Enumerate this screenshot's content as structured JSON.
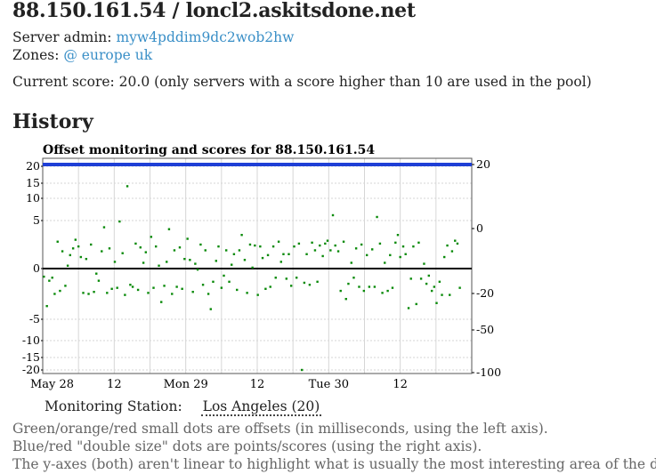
{
  "header": {
    "title": "88.150.161.54 / loncl2.askitsdone.net",
    "admin_label": "Server admin:",
    "admin_value": "myw4pddim9dc2wob2hw",
    "zones_label": "Zones:",
    "zones_value": "@ europe uk",
    "score_text": "Current score: 20.0 (only servers with a score higher than 10 are used in the pool)"
  },
  "history": {
    "heading": "History",
    "station_label": "Monitoring Station:",
    "station_value": "Los Angeles (20)"
  },
  "legend": {
    "line1": "Green/orange/red small dots are offsets (in milliseconds, using the left axis).",
    "line2": "Blue/red \"double size\" dots are points/scores (using the right axis).",
    "line3": "The y-axes (both) aren't linear to highlight what is usually the most interesting area of the data."
  },
  "colors": {
    "offset_dot": "#0a8a0a",
    "score_line": "#1f3fd6",
    "link": "#3a8fc7"
  },
  "chart_data": {
    "type": "scatter",
    "title": "Offset monitoring and scores for 88.150.161.54",
    "x_tick_labels": [
      "May 28",
      "12",
      "Mon 29",
      "12",
      "Tue 30",
      "12"
    ],
    "left_axis_ticks": [
      "20",
      "15",
      "10",
      "5",
      "0",
      "-5",
      "-10",
      "-15",
      "-20"
    ],
    "right_axis_ticks": [
      "20",
      "0",
      "-20",
      "-50",
      "-100"
    ],
    "xlim_hours": [
      0,
      72
    ],
    "series": [
      {
        "axis": "left",
        "points": [
          [
            0.2,
            -0.8
          ],
          [
            0.7,
            -3.7
          ],
          [
            1.1,
            -1.2
          ],
          [
            1.6,
            -0.9
          ],
          [
            2.0,
            -2.5
          ],
          [
            2.5,
            2.8
          ],
          [
            2.9,
            -2.2
          ],
          [
            3.3,
            1.8
          ],
          [
            3.8,
            -1.7
          ],
          [
            4.2,
            0.3
          ],
          [
            4.6,
            1.4
          ],
          [
            5.1,
            2.1
          ],
          [
            5.5,
            3.0
          ],
          [
            6.0,
            2.3
          ],
          [
            6.4,
            1.2
          ],
          [
            6.8,
            -2.4
          ],
          [
            7.3,
            1.0
          ],
          [
            7.7,
            -2.5
          ],
          [
            8.1,
            2.5
          ],
          [
            8.6,
            -2.3
          ],
          [
            9.0,
            -0.5
          ],
          [
            9.4,
            -1.2
          ],
          [
            9.9,
            1.8
          ],
          [
            10.3,
            4.3
          ],
          [
            10.8,
            -2.4
          ],
          [
            11.2,
            2.1
          ],
          [
            11.6,
            -2.0
          ],
          [
            12.1,
            0.7
          ],
          [
            12.5,
            -1.9
          ],
          [
            12.9,
            4.9
          ],
          [
            13.4,
            1.6
          ],
          [
            13.8,
            -2.6
          ],
          [
            14.2,
            14.0
          ],
          [
            14.7,
            -1.6
          ],
          [
            15.1,
            -1.8
          ],
          [
            15.6,
            2.6
          ],
          [
            16.0,
            -2.1
          ],
          [
            16.4,
            2.2
          ],
          [
            16.9,
            0.6
          ],
          [
            17.3,
            1.7
          ],
          [
            17.7,
            -2.4
          ],
          [
            18.2,
            3.3
          ],
          [
            18.6,
            -1.9
          ],
          [
            19.0,
            2.3
          ],
          [
            19.5,
            0.3
          ],
          [
            19.9,
            -3.3
          ],
          [
            20.4,
            -1.7
          ],
          [
            20.8,
            0.7
          ],
          [
            21.2,
            4.1
          ],
          [
            21.7,
            -2.5
          ],
          [
            22.1,
            1.9
          ],
          [
            22.5,
            -1.8
          ],
          [
            23.0,
            2.2
          ],
          [
            23.4,
            -2.0
          ],
          [
            23.8,
            1.0
          ],
          [
            24.3,
            3.1
          ],
          [
            24.7,
            0.9
          ],
          [
            25.2,
            -2.3
          ],
          [
            25.6,
            0.5
          ],
          [
            26.0,
            -0.1
          ],
          [
            26.5,
            2.5
          ],
          [
            26.9,
            -1.6
          ],
          [
            27.3,
            1.9
          ],
          [
            27.8,
            -2.5
          ],
          [
            28.2,
            -4.0
          ],
          [
            28.6,
            -1.3
          ],
          [
            29.1,
            0.8
          ],
          [
            29.5,
            2.3
          ],
          [
            30.0,
            -1.9
          ],
          [
            30.4,
            -0.7
          ],
          [
            30.8,
            1.9
          ],
          [
            31.3,
            -1.3
          ],
          [
            31.7,
            0.4
          ],
          [
            32.1,
            1.5
          ],
          [
            32.6,
            -2.1
          ],
          [
            33.0,
            1.9
          ],
          [
            33.4,
            3.5
          ],
          [
            33.9,
            0.9
          ],
          [
            34.3,
            -2.4
          ],
          [
            34.8,
            2.5
          ],
          [
            35.2,
            0.1
          ],
          [
            35.6,
            2.4
          ],
          [
            36.1,
            -2.6
          ],
          [
            36.5,
            2.3
          ],
          [
            36.9,
            1.1
          ],
          [
            37.4,
            -2.0
          ],
          [
            37.8,
            1.4
          ],
          [
            38.2,
            -1.8
          ],
          [
            38.7,
            2.3
          ],
          [
            39.1,
            -0.9
          ],
          [
            39.6,
            2.8
          ],
          [
            40.0,
            0.7
          ],
          [
            40.4,
            1.5
          ],
          [
            40.9,
            -1.0
          ],
          [
            41.3,
            1.5
          ],
          [
            41.7,
            -1.7
          ],
          [
            42.2,
            2.3
          ],
          [
            42.6,
            -0.9
          ],
          [
            43.0,
            2.6
          ],
          [
            43.5,
            -20.5
          ],
          [
            43.9,
            -1.4
          ],
          [
            44.3,
            1.5
          ],
          [
            44.8,
            -1.6
          ],
          [
            45.2,
            2.7
          ],
          [
            45.7,
            1.9
          ],
          [
            46.1,
            -1.3
          ],
          [
            46.5,
            2.4
          ],
          [
            47.0,
            1.3
          ],
          [
            47.4,
            2.6
          ],
          [
            47.8,
            2.9
          ],
          [
            48.3,
            1.9
          ],
          [
            48.7,
            6.2
          ],
          [
            49.1,
            2.4
          ],
          [
            49.6,
            1.8
          ],
          [
            50.0,
            -2.2
          ],
          [
            50.5,
            2.8
          ],
          [
            50.9,
            -3.0
          ],
          [
            51.3,
            -1.5
          ],
          [
            51.8,
            0.6
          ],
          [
            52.2,
            -0.9
          ],
          [
            52.6,
            2.1
          ],
          [
            53.1,
            -1.8
          ],
          [
            53.5,
            2.5
          ],
          [
            53.9,
            -2.2
          ],
          [
            54.4,
            1.4
          ],
          [
            54.8,
            -1.8
          ],
          [
            55.3,
            2.0
          ],
          [
            55.7,
            -1.8
          ],
          [
            56.1,
            5.8
          ],
          [
            56.6,
            2.6
          ],
          [
            57.0,
            -2.4
          ],
          [
            57.4,
            0.6
          ],
          [
            57.9,
            -2.2
          ],
          [
            58.3,
            1.4
          ],
          [
            58.7,
            -1.9
          ],
          [
            59.2,
            2.7
          ],
          [
            59.6,
            3.5
          ],
          [
            60.0,
            1.2
          ],
          [
            60.5,
            2.3
          ],
          [
            60.9,
            1.5
          ],
          [
            61.4,
            -3.9
          ],
          [
            61.8,
            -1.0
          ],
          [
            62.2,
            2.3
          ],
          [
            62.7,
            -3.5
          ],
          [
            63.1,
            2.7
          ],
          [
            63.5,
            -1.0
          ],
          [
            64.0,
            0.5
          ],
          [
            64.4,
            -1.5
          ],
          [
            64.8,
            -0.7
          ],
          [
            65.3,
            -2.2
          ],
          [
            65.7,
            -1.8
          ],
          [
            66.1,
            -3.4
          ],
          [
            66.6,
            -1.3
          ],
          [
            67.0,
            -2.6
          ],
          [
            67.4,
            1.2
          ],
          [
            67.9,
            2.4
          ],
          [
            68.3,
            -2.6
          ],
          [
            68.7,
            1.8
          ],
          [
            69.2,
            2.9
          ],
          [
            69.6,
            2.6
          ],
          [
            70.0,
            -1.9
          ]
        ]
      },
      {
        "axis": "right",
        "name": "score",
        "constant_value": 20
      }
    ]
  }
}
